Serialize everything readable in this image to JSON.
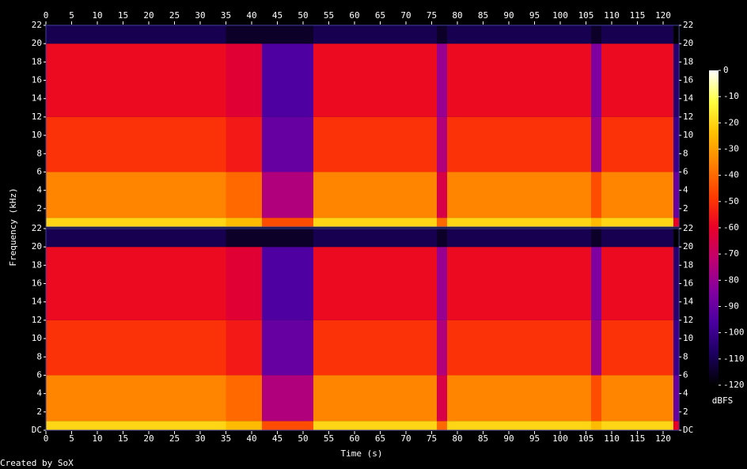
{
  "chart_data": {
    "type": "spectrogram",
    "xlabel": "Time (s)",
    "ylabel": "Frequency (kHz)",
    "colorbar_label": "dBFS",
    "footer": "Created by SoX",
    "xlim": [
      0,
      123.1
    ],
    "xticks": [
      0,
      5,
      10,
      15,
      20,
      25,
      30,
      35,
      40,
      45,
      50,
      55,
      60,
      65,
      70,
      75,
      80,
      85,
      90,
      95,
      100,
      105,
      110,
      115,
      120
    ],
    "ylim": [
      0,
      22
    ],
    "yticks": [
      {
        "value": 0,
        "label": "DC"
      },
      2,
      4,
      6,
      8,
      10,
      12,
      14,
      16,
      18,
      20,
      22
    ],
    "clim": [
      -120,
      0
    ],
    "cticks": [
      0,
      -10,
      -20,
      -30,
      -40,
      -50,
      -60,
      -70,
      -80,
      -90,
      -100,
      -110,
      -120
    ],
    "colormap": [
      [
        -120,
        "#000000"
      ],
      [
        -108,
        "#1c0060"
      ],
      [
        -96,
        "#4a00a0"
      ],
      [
        -84,
        "#8400a0"
      ],
      [
        -72,
        "#c00070"
      ],
      [
        -60,
        "#e80028"
      ],
      [
        -48,
        "#ff3c00"
      ],
      [
        -36,
        "#ff8000"
      ],
      [
        -24,
        "#ffc000"
      ],
      [
        -12,
        "#ffff40"
      ],
      [
        0,
        "#ffffff"
      ]
    ],
    "time_bins": [
      0,
      35,
      42,
      52,
      76,
      78,
      106,
      108,
      122,
      123.1
    ],
    "freq_bins": [
      0,
      1,
      6,
      12,
      20,
      22
    ],
    "channels": [
      {
        "levels": [
          [
            -20,
            -35,
            -50,
            -58,
            -110
          ],
          [
            -25,
            -40,
            -55,
            -62,
            -115
          ],
          [
            -45,
            -75,
            -90,
            -95,
            -115
          ],
          [
            -20,
            -35,
            -50,
            -58,
            -110
          ],
          [
            -40,
            -65,
            -75,
            -80,
            -115
          ],
          [
            -20,
            -35,
            -50,
            -58,
            -110
          ],
          [
            -25,
            -45,
            -80,
            -85,
            -115
          ],
          [
            -20,
            -35,
            -50,
            -58,
            -110
          ],
          [
            -60,
            -90,
            -100,
            -105,
            -120
          ]
        ]
      },
      {
        "levels": [
          [
            -20,
            -35,
            -50,
            -58,
            -110
          ],
          [
            -25,
            -40,
            -55,
            -62,
            -115
          ],
          [
            -45,
            -75,
            -90,
            -95,
            -115
          ],
          [
            -20,
            -35,
            -50,
            -58,
            -110
          ],
          [
            -40,
            -65,
            -75,
            -80,
            -115
          ],
          [
            -20,
            -35,
            -50,
            -58,
            -110
          ],
          [
            -25,
            -45,
            -80,
            -85,
            -115
          ],
          [
            -20,
            -35,
            -50,
            -58,
            -110
          ],
          [
            -60,
            -90,
            -100,
            -105,
            -120
          ]
        ]
      }
    ]
  }
}
